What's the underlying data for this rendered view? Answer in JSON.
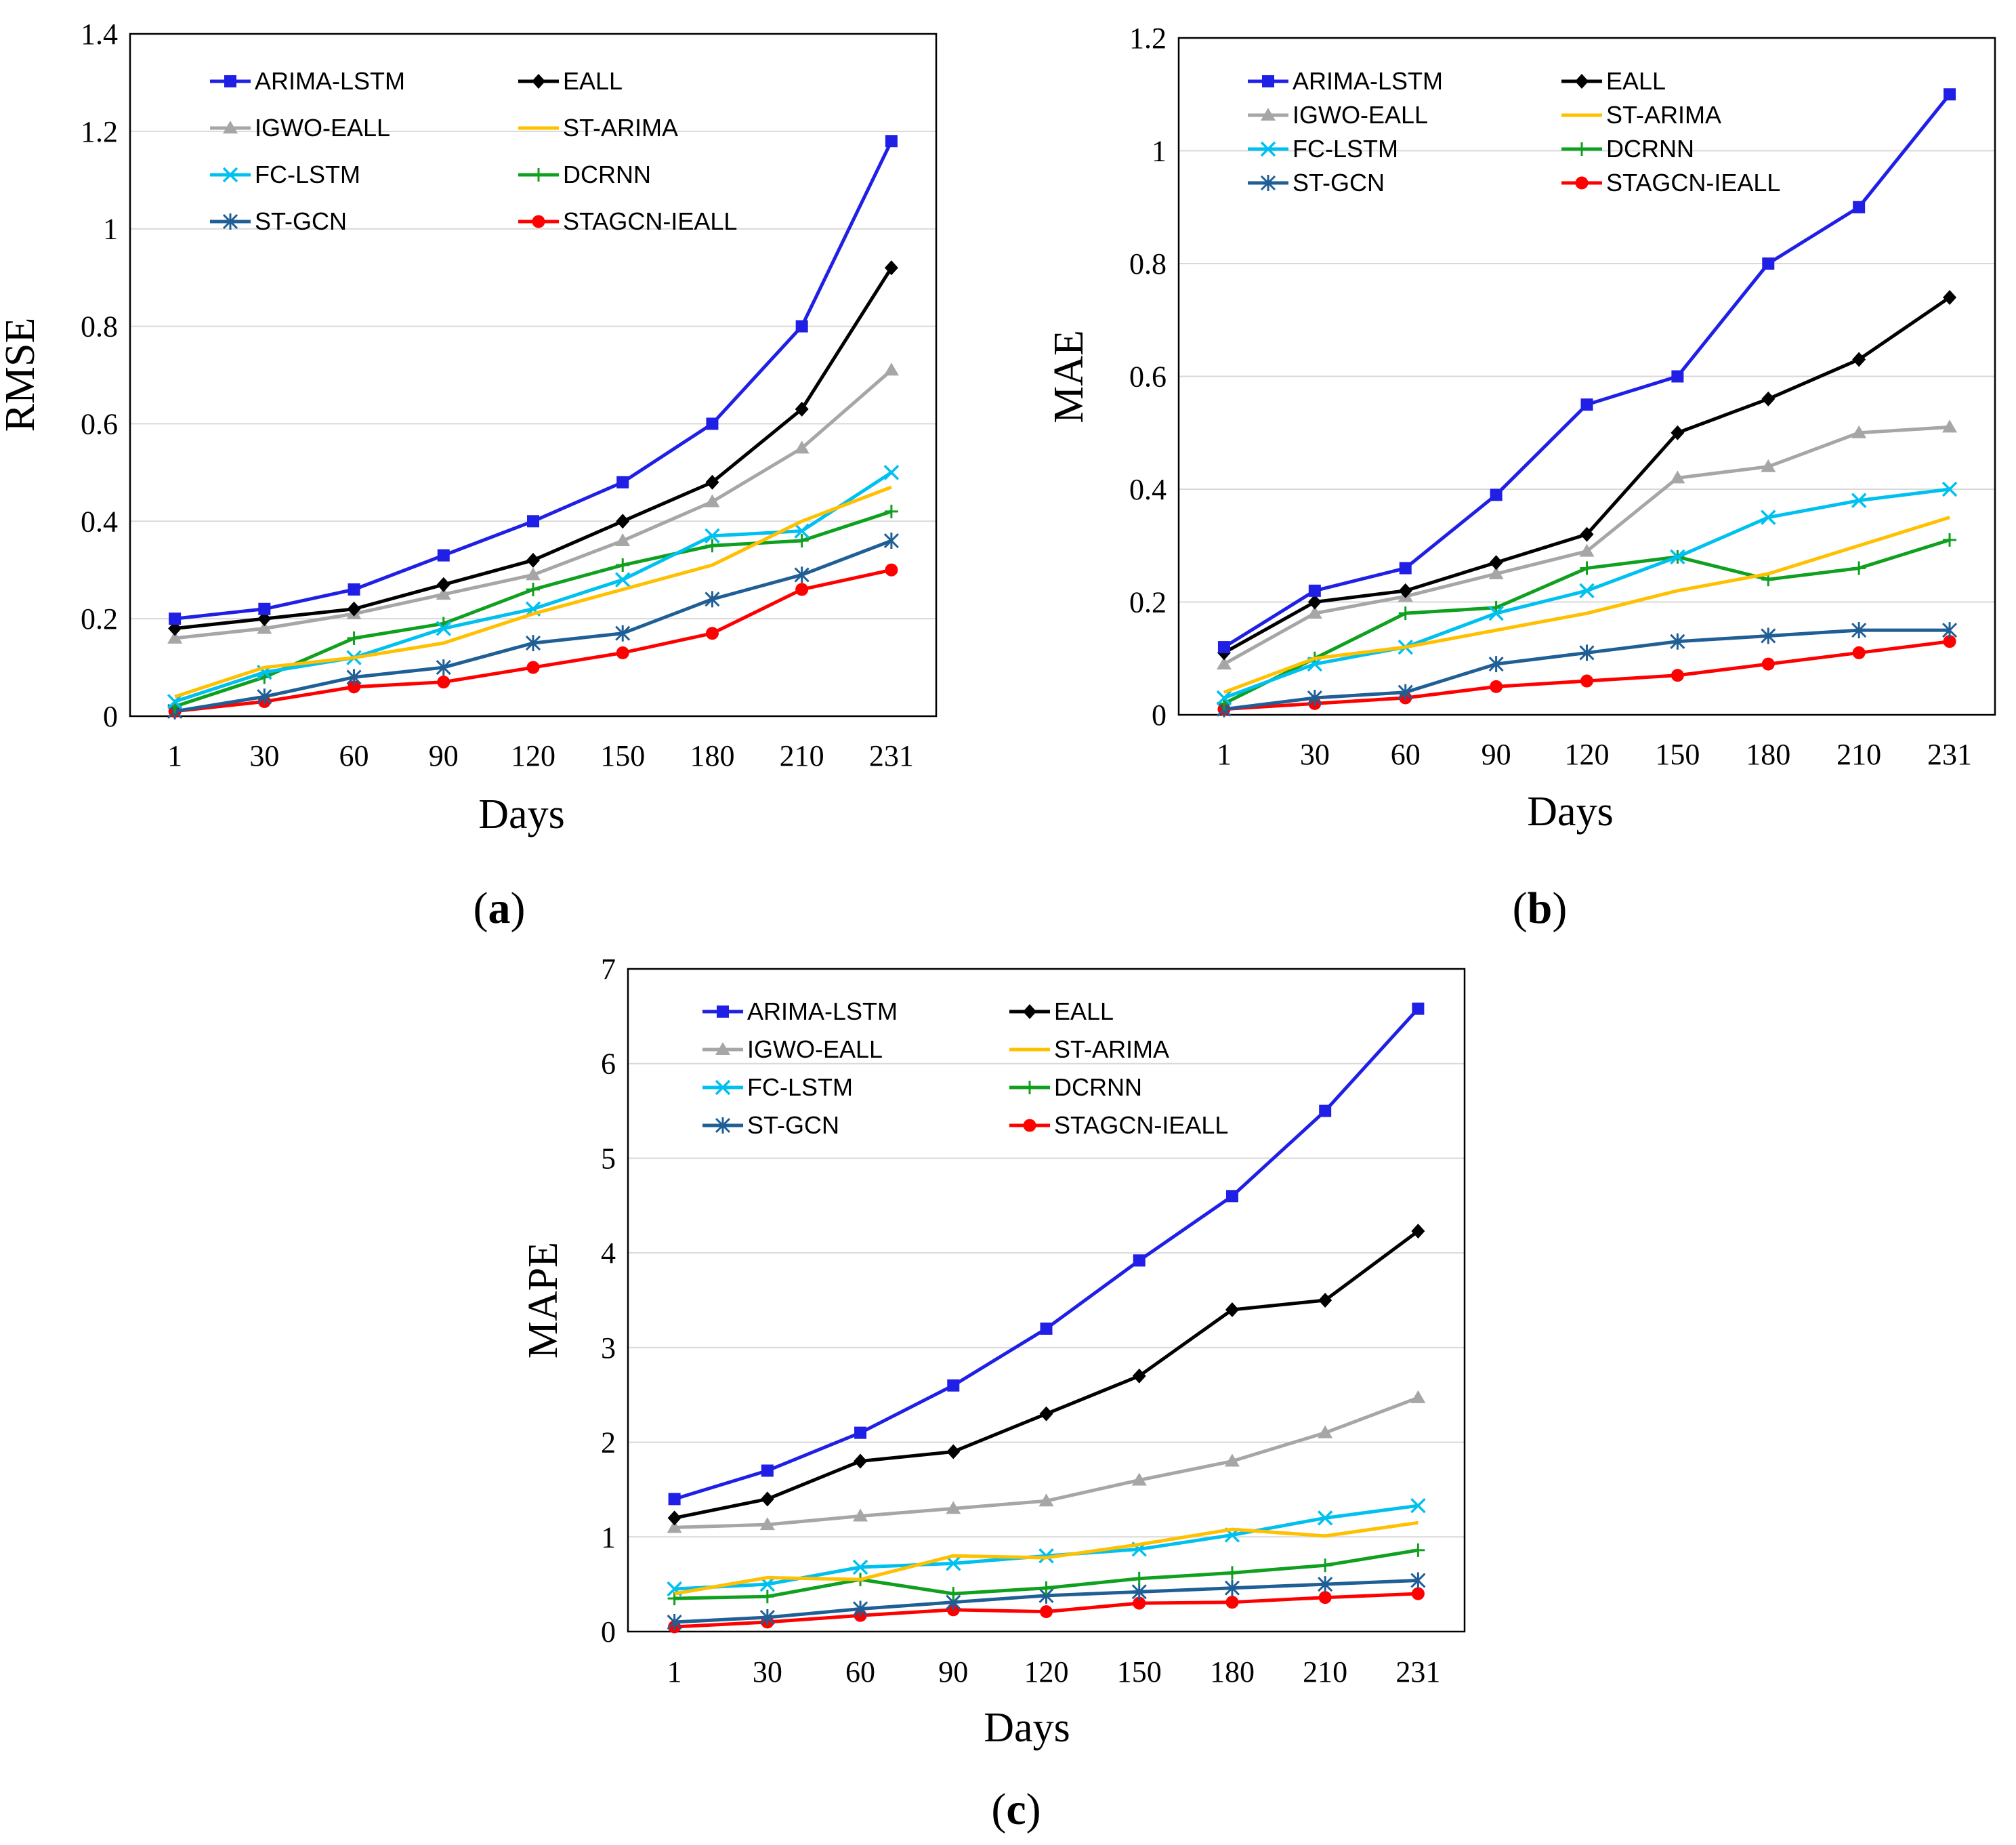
{
  "chart_data": [
    {
      "id": "a",
      "type": "line",
      "panel_label": "a",
      "xlabel": "Days",
      "ylabel": "RMSE",
      "ylim": [
        0,
        1.4
      ],
      "yticks": [
        "0",
        "0.2",
        "0.4",
        "0.6",
        "0.8",
        "1",
        "1.2",
        "1.4"
      ],
      "categories": [
        "1",
        "30",
        "60",
        "90",
        "120",
        "150",
        "180",
        "210",
        "231"
      ],
      "grid": "horizontal",
      "legend_position": "top-left",
      "series": [
        {
          "name": "ARIMA-LSTM",
          "color": "#1f1fe6",
          "marker": "square",
          "values": [
            0.2,
            0.22,
            0.26,
            0.33,
            0.4,
            0.48,
            0.6,
            0.8,
            1.18
          ]
        },
        {
          "name": "EALL",
          "color": "#000000",
          "marker": "diamond",
          "values": [
            0.18,
            0.2,
            0.22,
            0.27,
            0.32,
            0.4,
            0.48,
            0.63,
            0.92
          ]
        },
        {
          "name": "IGWO-EALL",
          "color": "#a6a6a6",
          "marker": "triangle",
          "values": [
            0.16,
            0.18,
            0.21,
            0.25,
            0.29,
            0.36,
            0.44,
            0.55,
            0.71
          ]
        },
        {
          "name": "ST-ARIMA",
          "color": "#ffc000",
          "marker": "none",
          "values": [
            0.04,
            0.1,
            0.12,
            0.15,
            0.21,
            0.26,
            0.31,
            0.4,
            0.47
          ]
        },
        {
          "name": "FC-LSTM",
          "color": "#00c0f0",
          "marker": "x",
          "values": [
            0.03,
            0.09,
            0.12,
            0.18,
            0.22,
            0.28,
            0.37,
            0.38,
            0.5
          ]
        },
        {
          "name": "DCRNN",
          "color": "#10a020",
          "marker": "plus",
          "values": [
            0.02,
            0.08,
            0.16,
            0.19,
            0.26,
            0.31,
            0.35,
            0.36,
            0.42
          ]
        },
        {
          "name": "ST-GCN",
          "color": "#1f5f96",
          "marker": "asterisk",
          "values": [
            0.01,
            0.04,
            0.08,
            0.1,
            0.15,
            0.17,
            0.24,
            0.29,
            0.36
          ]
        },
        {
          "name": "STAGCN-IEALL",
          "color": "#ff0000",
          "marker": "circle",
          "values": [
            0.01,
            0.03,
            0.06,
            0.07,
            0.1,
            0.13,
            0.17,
            0.26,
            0.3
          ]
        }
      ]
    },
    {
      "id": "b",
      "type": "line",
      "panel_label": "b",
      "xlabel": "Days",
      "ylabel": "MAE",
      "ylim": [
        0,
        1.2
      ],
      "yticks": [
        "0",
        "0.2",
        "0.4",
        "0.6",
        "0.8",
        "1",
        "1.2"
      ],
      "categories": [
        "1",
        "30",
        "60",
        "90",
        "120",
        "150",
        "180",
        "210",
        "231"
      ],
      "grid": "horizontal",
      "legend_position": "top-left",
      "series": [
        {
          "name": "ARIMA-LSTM",
          "color": "#1f1fe6",
          "marker": "square",
          "values": [
            0.12,
            0.22,
            0.26,
            0.39,
            0.55,
            0.6,
            0.8,
            0.9,
            1.1
          ]
        },
        {
          "name": "EALL",
          "color": "#000000",
          "marker": "diamond",
          "values": [
            0.11,
            0.2,
            0.22,
            0.27,
            0.32,
            0.5,
            0.56,
            0.63,
            0.74
          ]
        },
        {
          "name": "IGWO-EALL",
          "color": "#a6a6a6",
          "marker": "triangle",
          "values": [
            0.09,
            0.18,
            0.21,
            0.25,
            0.29,
            0.42,
            0.44,
            0.5,
            0.51
          ]
        },
        {
          "name": "ST-ARIMA",
          "color": "#ffc000",
          "marker": "none",
          "values": [
            0.04,
            0.1,
            0.12,
            0.15,
            0.18,
            0.22,
            0.25,
            0.3,
            0.35
          ]
        },
        {
          "name": "FC-LSTM",
          "color": "#00c0f0",
          "marker": "x",
          "values": [
            0.03,
            0.09,
            0.12,
            0.18,
            0.22,
            0.28,
            0.35,
            0.38,
            0.4
          ]
        },
        {
          "name": "DCRNN",
          "color": "#10a020",
          "marker": "plus",
          "values": [
            0.02,
            0.1,
            0.18,
            0.19,
            0.26,
            0.28,
            0.24,
            0.26,
            0.31
          ]
        },
        {
          "name": "ST-GCN",
          "color": "#1f5f96",
          "marker": "asterisk",
          "values": [
            0.01,
            0.03,
            0.04,
            0.09,
            0.11,
            0.13,
            0.14,
            0.15,
            0.15
          ]
        },
        {
          "name": "STAGCN-IEALL",
          "color": "#ff0000",
          "marker": "circle",
          "values": [
            0.01,
            0.02,
            0.03,
            0.05,
            0.06,
            0.07,
            0.09,
            0.11,
            0.13
          ]
        }
      ]
    },
    {
      "id": "c",
      "type": "line",
      "panel_label": "c",
      "xlabel": "Days",
      "ylabel": "MAPE",
      "ylim": [
        0,
        7
      ],
      "yticks": [
        "0",
        "1",
        "2",
        "3",
        "4",
        "5",
        "6",
        "7"
      ],
      "categories": [
        "1",
        "30",
        "60",
        "90",
        "120",
        "150",
        "180",
        "210",
        "231"
      ],
      "grid": "horizontal",
      "legend_position": "top-left",
      "series": [
        {
          "name": "ARIMA-LSTM",
          "color": "#1f1fe6",
          "marker": "square",
          "values": [
            1.4,
            1.7,
            2.1,
            2.6,
            3.2,
            3.92,
            4.6,
            5.5,
            6.58
          ]
        },
        {
          "name": "EALL",
          "color": "#000000",
          "marker": "diamond",
          "values": [
            1.2,
            1.4,
            1.8,
            1.9,
            2.3,
            2.7,
            3.4,
            3.5,
            4.23
          ]
        },
        {
          "name": "IGWO-EALL",
          "color": "#a6a6a6",
          "marker": "triangle",
          "values": [
            1.1,
            1.13,
            1.22,
            1.3,
            1.38,
            1.6,
            1.8,
            2.1,
            2.47
          ]
        },
        {
          "name": "ST-ARIMA",
          "color": "#ffc000",
          "marker": "none",
          "values": [
            0.4,
            0.57,
            0.55,
            0.8,
            0.78,
            0.92,
            1.08,
            1.01,
            1.15
          ]
        },
        {
          "name": "FC-LSTM",
          "color": "#00c0f0",
          "marker": "x",
          "values": [
            0.45,
            0.5,
            0.68,
            0.72,
            0.8,
            0.87,
            1.02,
            1.2,
            1.33
          ]
        },
        {
          "name": "DCRNN",
          "color": "#10a020",
          "marker": "plus",
          "values": [
            0.35,
            0.37,
            0.55,
            0.4,
            0.46,
            0.56,
            0.62,
            0.7,
            0.86
          ]
        },
        {
          "name": "ST-GCN",
          "color": "#1f5f96",
          "marker": "asterisk",
          "values": [
            0.1,
            0.15,
            0.24,
            0.31,
            0.38,
            0.42,
            0.46,
            0.5,
            0.54
          ]
        },
        {
          "name": "STAGCN-IEALL",
          "color": "#ff0000",
          "marker": "circle",
          "values": [
            0.05,
            0.1,
            0.17,
            0.23,
            0.21,
            0.3,
            0.31,
            0.36,
            0.4
          ]
        }
      ]
    }
  ]
}
